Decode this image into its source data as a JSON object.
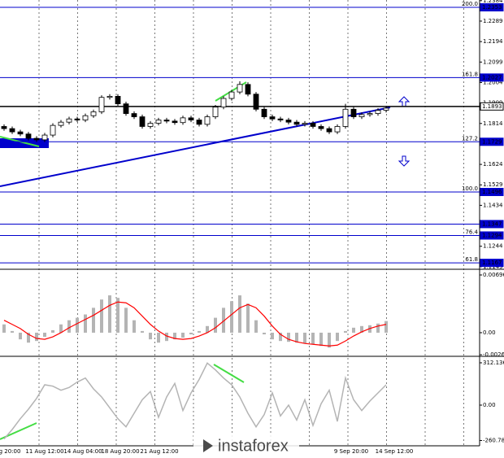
{
  "chart_data": [
    {
      "type": "candlestick",
      "open": [
        1.18,
        1.179,
        1.1775,
        1.1765,
        1.1745,
        1.1738,
        1.176,
        1.1805,
        1.182,
        1.1835,
        1.183,
        1.185,
        1.1868,
        1.1935,
        1.194,
        1.1905,
        1.186,
        1.1845,
        1.18,
        1.1815,
        1.183,
        1.1825,
        1.1818,
        1.184,
        1.183,
        1.181,
        1.1845,
        1.189,
        1.193,
        1.196,
        1.1995,
        1.195,
        1.188,
        1.1845,
        1.1835,
        1.183,
        1.182,
        1.181,
        1.1815,
        1.18,
        1.179,
        1.1775,
        1.18,
        1.188,
        1.1845,
        1.1855,
        1.186,
        1.1875
      ],
      "high": [
        1.181,
        1.18,
        1.1785,
        1.1775,
        1.1755,
        1.177,
        1.1815,
        1.183,
        1.1845,
        1.1845,
        1.186,
        1.1878,
        1.1945,
        1.195,
        1.195,
        1.1915,
        1.187,
        1.1855,
        1.1825,
        1.184,
        1.184,
        1.1835,
        1.185,
        1.185,
        1.184,
        1.1855,
        1.19,
        1.194,
        1.197,
        1.201,
        1.2005,
        1.196,
        1.189,
        1.1855,
        1.1845,
        1.184,
        1.183,
        1.1825,
        1.1825,
        1.181,
        1.18,
        1.181,
        1.1905,
        1.189,
        1.1865,
        1.187,
        1.1885,
        1.1895
      ],
      "low": [
        1.178,
        1.1765,
        1.1755,
        1.1735,
        1.1728,
        1.1728,
        1.175,
        1.1795,
        1.181,
        1.182,
        1.182,
        1.184,
        1.1858,
        1.1925,
        1.1895,
        1.185,
        1.1835,
        1.179,
        1.179,
        1.1805,
        1.1815,
        1.1808,
        1.1808,
        1.182,
        1.18,
        1.18,
        1.1835,
        1.188,
        1.192,
        1.195,
        1.194,
        1.187,
        1.1835,
        1.1825,
        1.182,
        1.181,
        1.18,
        1.18,
        1.179,
        1.178,
        1.1765,
        1.1765,
        1.179,
        1.1835,
        1.1835,
        1.1845,
        1.185,
        1.1865
      ],
      "close": [
        1.179,
        1.1775,
        1.1765,
        1.1745,
        1.1738,
        1.176,
        1.1805,
        1.182,
        1.1835,
        1.183,
        1.185,
        1.1868,
        1.1935,
        1.194,
        1.1905,
        1.186,
        1.1845,
        1.18,
        1.1815,
        1.183,
        1.1825,
        1.1818,
        1.184,
        1.183,
        1.181,
        1.1845,
        1.189,
        1.193,
        1.196,
        1.1995,
        1.195,
        1.188,
        1.1845,
        1.1835,
        1.183,
        1.182,
        1.181,
        1.1815,
        1.18,
        1.179,
        1.1775,
        1.18,
        1.188,
        1.1845,
        1.1855,
        1.186,
        1.1875,
        1.1885
      ],
      "ylim": [
        1.1141,
        1.2387
      ],
      "yticks": [
        1.2384,
        1.2289,
        1.2194,
        1.2099,
        1.2004,
        1.1909,
        1.1814,
        1.1719,
        1.1624,
        1.1529,
        1.1434,
        1.1339,
        1.1244,
        1.1149
      ],
      "levels": [
        {
          "name": "200.0",
          "value": 1.2353,
          "color": "#0000cc"
        },
        {
          "name": "161.8",
          "value": 1.2027,
          "color": "#0000cc"
        },
        {
          "value": 1.1893,
          "color": "#000000"
        },
        {
          "name": "127.2",
          "value": 1.1729,
          "color": "#0000cc"
        },
        {
          "name": "100.0",
          "value": 1.1496,
          "color": "#0000cc"
        },
        {
          "value": 1.1347,
          "color": "#0000cc"
        },
        {
          "name": "76.4",
          "value": 1.1294,
          "color": "#0000cc"
        },
        {
          "name": "61.8",
          "value": 1.1167,
          "color": "#0000cc"
        }
      ]
    },
    {
      "type": "macd",
      "histogram": [
        0.001,
        0.0002,
        -0.0008,
        -0.0012,
        -0.001,
        -0.0005,
        0.0003,
        0.001,
        0.0015,
        0.0018,
        0.0022,
        0.003,
        0.004,
        0.0045,
        0.0042,
        0.003,
        0.0015,
        0.0002,
        -0.0008,
        -0.0012,
        -0.001,
        -0.0008,
        -0.0006,
        -0.0002,
        0.0002,
        0.0008,
        0.0018,
        0.003,
        0.0038,
        0.0045,
        0.0035,
        0.0015,
        -0.0002,
        -0.0008,
        -0.001,
        -0.0011,
        -0.0012,
        -0.0013,
        -0.0014,
        -0.0016,
        -0.0018,
        -0.001,
        0.0002,
        0.0006,
        0.0008,
        0.0009,
        0.0011,
        0.0014
      ],
      "signal": [
        0.0015,
        0.001,
        0.0005,
        -0.0002,
        -0.0007,
        -0.0008,
        -0.0005,
        0.0,
        0.0006,
        0.0011,
        0.0016,
        0.0021,
        0.0027,
        0.0033,
        0.0037,
        0.0036,
        0.003,
        0.002,
        0.001,
        0.0002,
        -0.0004,
        -0.0007,
        -0.0008,
        -0.0007,
        -0.0004,
        0.0,
        0.0006,
        0.0014,
        0.0022,
        0.003,
        0.0034,
        0.003,
        0.002,
        0.0008,
        -0.0002,
        -0.0008,
        -0.0011,
        -0.0013,
        -0.0014,
        -0.0015,
        -0.0016,
        -0.0015,
        -0.001,
        -0.0004,
        0.0001,
        0.0005,
        0.0008,
        0.001
      ],
      "hist_color": "#b4b4b4",
      "signal_color": "#ff0000",
      "ylim": [
        -0.00275,
        0.00745
      ],
      "yticks": [
        0.00696,
        {
          "value": 0,
          "label": "0.00"
        },
        -0.00266
      ]
    },
    {
      "type": "cci",
      "values": [
        -250,
        -180,
        -100,
        -30,
        50,
        150,
        140,
        110,
        130,
        170,
        200,
        120,
        60,
        -20,
        -100,
        -160,
        -60,
        40,
        100,
        -90,
        60,
        160,
        -40,
        90,
        190,
        310,
        260,
        200,
        150,
        60,
        -60,
        -160,
        -70,
        90,
        -80,
        0,
        -110,
        40,
        -150,
        10,
        110,
        -120,
        200,
        40,
        -40,
        30,
        90,
        150
      ],
      "color": "#b4b4b4",
      "ylim": [
        -300,
        348
      ],
      "yticks": [
        312.1363,
        {
          "value": 0,
          "label": "0.00"
        },
        -260.7828
      ],
      "x_labels": [
        "g 20:00",
        "11 Aug 12:00",
        "14 Aug 04:00",
        "18 Aug 20:00",
        "21 Aug 12:00",
        "9 Sep 20:00",
        "14 Sep 12:00"
      ]
    }
  ],
  "watermark": "instaforex"
}
